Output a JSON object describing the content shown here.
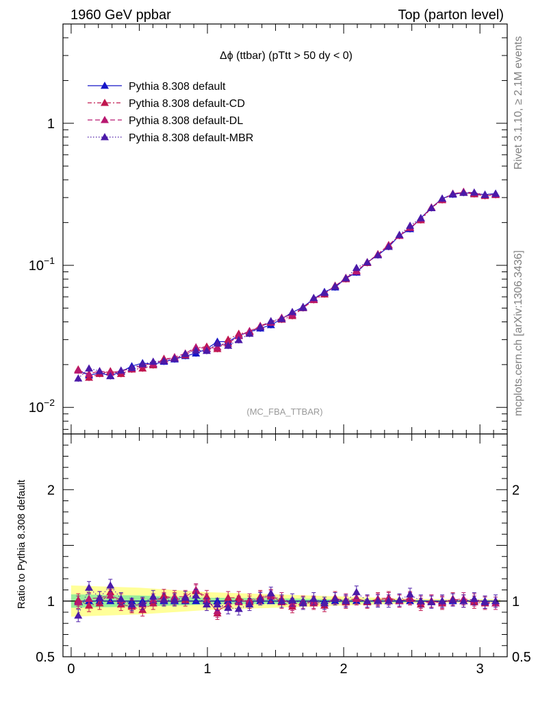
{
  "header": {
    "left": "1960 GeV ppbar",
    "right": "Top (parton level)"
  },
  "side_labels": {
    "rivet": "Rivet 3.1.10, ≥ 2.1M events",
    "mcplots": "mcplots.cern.ch [arXiv:1306.3436]"
  },
  "colors": {
    "default": "#1515c8",
    "cd": "#c0164e",
    "dl": "#b81870",
    "mbr": "#4b1aa8",
    "band_outer": "#ffff99",
    "band_inner": "#99ee99"
  },
  "chart_data": [
    {
      "type": "line",
      "title": "Δϕ (ttbar) (pTtt > 50 dy < 0)",
      "annotation": "(MC_FBA_TTBAR)",
      "xlabel": "",
      "ylabel": "",
      "yscale": "log",
      "xlim": [
        -0.06,
        3.2
      ],
      "ylim": [
        0.0065,
        5.0
      ],
      "xticks": [
        {
          "v": 0,
          "label": "0"
        },
        {
          "v": 1,
          "label": "1"
        },
        {
          "v": 2,
          "label": "2"
        },
        {
          "v": 3,
          "label": "3"
        }
      ],
      "yticks": [
        {
          "v": 0.01,
          "base": "10",
          "exp": "−2"
        },
        {
          "v": 0.1,
          "base": "10",
          "exp": "−1"
        },
        {
          "v": 1,
          "base": "1",
          "exp": ""
        }
      ],
      "legend_position": "top-left",
      "x": [
        0.052,
        0.131,
        0.209,
        0.288,
        0.366,
        0.445,
        0.524,
        0.602,
        0.681,
        0.759,
        0.838,
        0.916,
        0.995,
        1.073,
        1.152,
        1.23,
        1.309,
        1.388,
        1.466,
        1.545,
        1.623,
        1.702,
        1.78,
        1.859,
        1.937,
        2.016,
        2.094,
        2.173,
        2.251,
        2.33,
        2.409,
        2.487,
        2.566,
        2.644,
        2.723,
        2.801,
        2.88,
        2.958,
        3.037,
        3.115
      ],
      "series": [
        {
          "name": "Pythia 8.308 default",
          "key": "default",
          "dash": "",
          "values": [
            0.0183,
            0.0168,
            0.0175,
            0.0167,
            0.0178,
            0.0195,
            0.0205,
            0.0201,
            0.021,
            0.0218,
            0.023,
            0.024,
            0.0258,
            0.029,
            0.029,
            0.032,
            0.034,
            0.036,
            0.038,
            0.042,
            0.0465,
            0.051,
            0.058,
            0.065,
            0.07,
            0.081,
            0.089,
            0.105,
            0.118,
            0.135,
            0.162,
            0.18,
            0.215,
            0.255,
            0.295,
            0.315,
            0.325,
            0.32,
            0.315,
            0.32
          ]
        },
        {
          "name": "Pythia 8.308 default-CD",
          "key": "cd",
          "dash": "6 3 2 3",
          "values": [
            0.0185,
            0.0162,
            0.0172,
            0.018,
            0.0172,
            0.0185,
            0.0188,
            0.0198,
            0.022,
            0.0222,
            0.0233,
            0.0262,
            0.0268,
            0.0258,
            0.03,
            0.033,
            0.0338,
            0.0375,
            0.04,
            0.0415,
            0.044,
            0.05,
            0.057,
            0.0625,
            0.072,
            0.08,
            0.092,
            0.104,
            0.12,
            0.139,
            0.162,
            0.185,
            0.208,
            0.254,
            0.288,
            0.32,
            0.326,
            0.317,
            0.308,
            0.313
          ]
        },
        {
          "name": "Pythia 8.308 default-DL",
          "key": "dl",
          "dash": "7 4",
          "values": [
            0.0182,
            0.0172,
            0.018,
            0.0176,
            0.018,
            0.0188,
            0.0198,
            0.0203,
            0.0215,
            0.0226,
            0.024,
            0.0265,
            0.026,
            0.0265,
            0.0282,
            0.0318,
            0.0345,
            0.0372,
            0.0395,
            0.0428,
            0.045,
            0.0505,
            0.0575,
            0.064,
            0.0712,
            0.0818,
            0.0905,
            0.1055,
            0.1195,
            0.138,
            0.1615,
            0.1835,
            0.2125,
            0.256,
            0.292,
            0.318,
            0.33,
            0.323,
            0.312,
            0.315
          ]
        },
        {
          "name": "Pythia 8.308 default-MBR",
          "key": "mbr",
          "dash": "1.5 2.5",
          "values": [
            0.016,
            0.0188,
            0.018,
            0.0166,
            0.0182,
            0.019,
            0.0202,
            0.021,
            0.0212,
            0.022,
            0.0238,
            0.0252,
            0.025,
            0.0282,
            0.0272,
            0.0298,
            0.033,
            0.0368,
            0.0405,
            0.042,
            0.047,
            0.0502,
            0.059,
            0.064,
            0.0712,
            0.081,
            0.096,
            0.105,
            0.118,
            0.135,
            0.164,
            0.19,
            0.215,
            0.253,
            0.295,
            0.318,
            0.324,
            0.326,
            0.313,
            0.319
          ]
        }
      ]
    },
    {
      "type": "line",
      "title": "",
      "xlabel": "",
      "ylabel": "Ratio to Pythia 8.308 default",
      "yscale": "linear",
      "xlim": [
        -0.06,
        3.2
      ],
      "ylim": [
        0.5,
        2.5
      ],
      "yticks": [
        {
          "v": 0.5,
          "label": "0.5"
        },
        {
          "v": 1,
          "label": "1"
        },
        {
          "v": 2,
          "label": "2"
        }
      ],
      "reference_line": 1.0,
      "uncertainty_band": {
        "x": [
          0.0,
          0.5,
          1.0,
          1.5,
          2.0,
          2.5,
          2.75,
          3.15
        ],
        "outer_low": [
          0.86,
          0.88,
          0.92,
          0.94,
          0.96,
          0.98,
          0.985,
          0.985
        ],
        "outer_high": [
          1.14,
          1.12,
          1.08,
          1.06,
          1.04,
          1.02,
          1.015,
          1.015
        ],
        "inner_low": [
          0.94,
          0.95,
          0.97,
          0.975,
          0.985,
          0.99,
          0.995,
          0.995
        ],
        "inner_high": [
          1.06,
          1.05,
          1.03,
          1.025,
          1.015,
          1.01,
          1.005,
          1.005
        ]
      },
      "series": [
        {
          "name": "Pythia 8.308 default",
          "key": "default",
          "dash": "",
          "values": [
            1.0,
            1.0,
            1.0,
            1.0,
            1.0,
            1.0,
            1.0,
            1.0,
            1.0,
            1.0,
            1.0,
            1.0,
            1.0,
            1.0,
            1.0,
            1.0,
            1.0,
            1.0,
            1.0,
            1.0,
            1.0,
            1.0,
            1.0,
            1.0,
            1.0,
            1.0,
            1.0,
            1.0,
            1.0,
            1.0,
            1.0,
            1.0,
            1.0,
            1.0,
            1.0,
            1.0,
            1.0,
            1.0,
            1.0,
            1.0
          ]
        },
        {
          "name": "Pythia 8.308 default-CD",
          "key": "cd",
          "dash": "6 3 2 3",
          "values": [
            1.01,
            0.96,
            0.98,
            1.08,
            0.97,
            0.95,
            0.92,
            0.98,
            1.05,
            1.02,
            1.01,
            1.09,
            1.04,
            0.89,
            1.03,
            1.03,
            0.99,
            1.04,
            1.05,
            0.99,
            0.95,
            0.98,
            0.98,
            0.96,
            1.03,
            0.99,
            1.03,
            0.99,
            1.02,
            1.03,
            1.0,
            1.03,
            0.97,
            1.0,
            0.98,
            1.02,
            1.0,
            0.99,
            0.98,
            0.98
          ]
        },
        {
          "name": "Pythia 8.308 default-DL",
          "key": "dl",
          "dash": "7 4",
          "values": [
            0.99,
            1.02,
            1.03,
            1.05,
            1.01,
            0.96,
            0.97,
            1.01,
            1.02,
            1.04,
            1.04,
            1.1,
            1.01,
            0.91,
            0.97,
            0.99,
            1.01,
            1.03,
            1.04,
            1.02,
            0.97,
            0.99,
            0.99,
            0.98,
            1.02,
            1.01,
            1.02,
            1.0,
            1.01,
            1.02,
            1.0,
            1.02,
            0.99,
            1.0,
            0.99,
            1.01,
            1.02,
            1.01,
            0.99,
            0.98
          ]
        },
        {
          "name": "Pythia 8.308 default-MBR",
          "key": "mbr",
          "dash": "1.5 2.5",
          "values": [
            0.87,
            1.12,
            1.03,
            1.14,
            1.02,
            0.97,
            0.98,
            1.04,
            1.01,
            1.01,
            1.03,
            1.05,
            0.97,
            0.97,
            0.94,
            0.93,
            0.97,
            1.02,
            1.07,
            1.0,
            1.01,
            0.98,
            1.02,
            0.98,
            1.02,
            1.0,
            1.08,
            1.0,
            1.0,
            1.0,
            1.01,
            1.06,
            1.0,
            0.99,
            1.0,
            1.01,
            1.0,
            1.02,
            0.99,
            1.0
          ]
        }
      ]
    }
  ]
}
